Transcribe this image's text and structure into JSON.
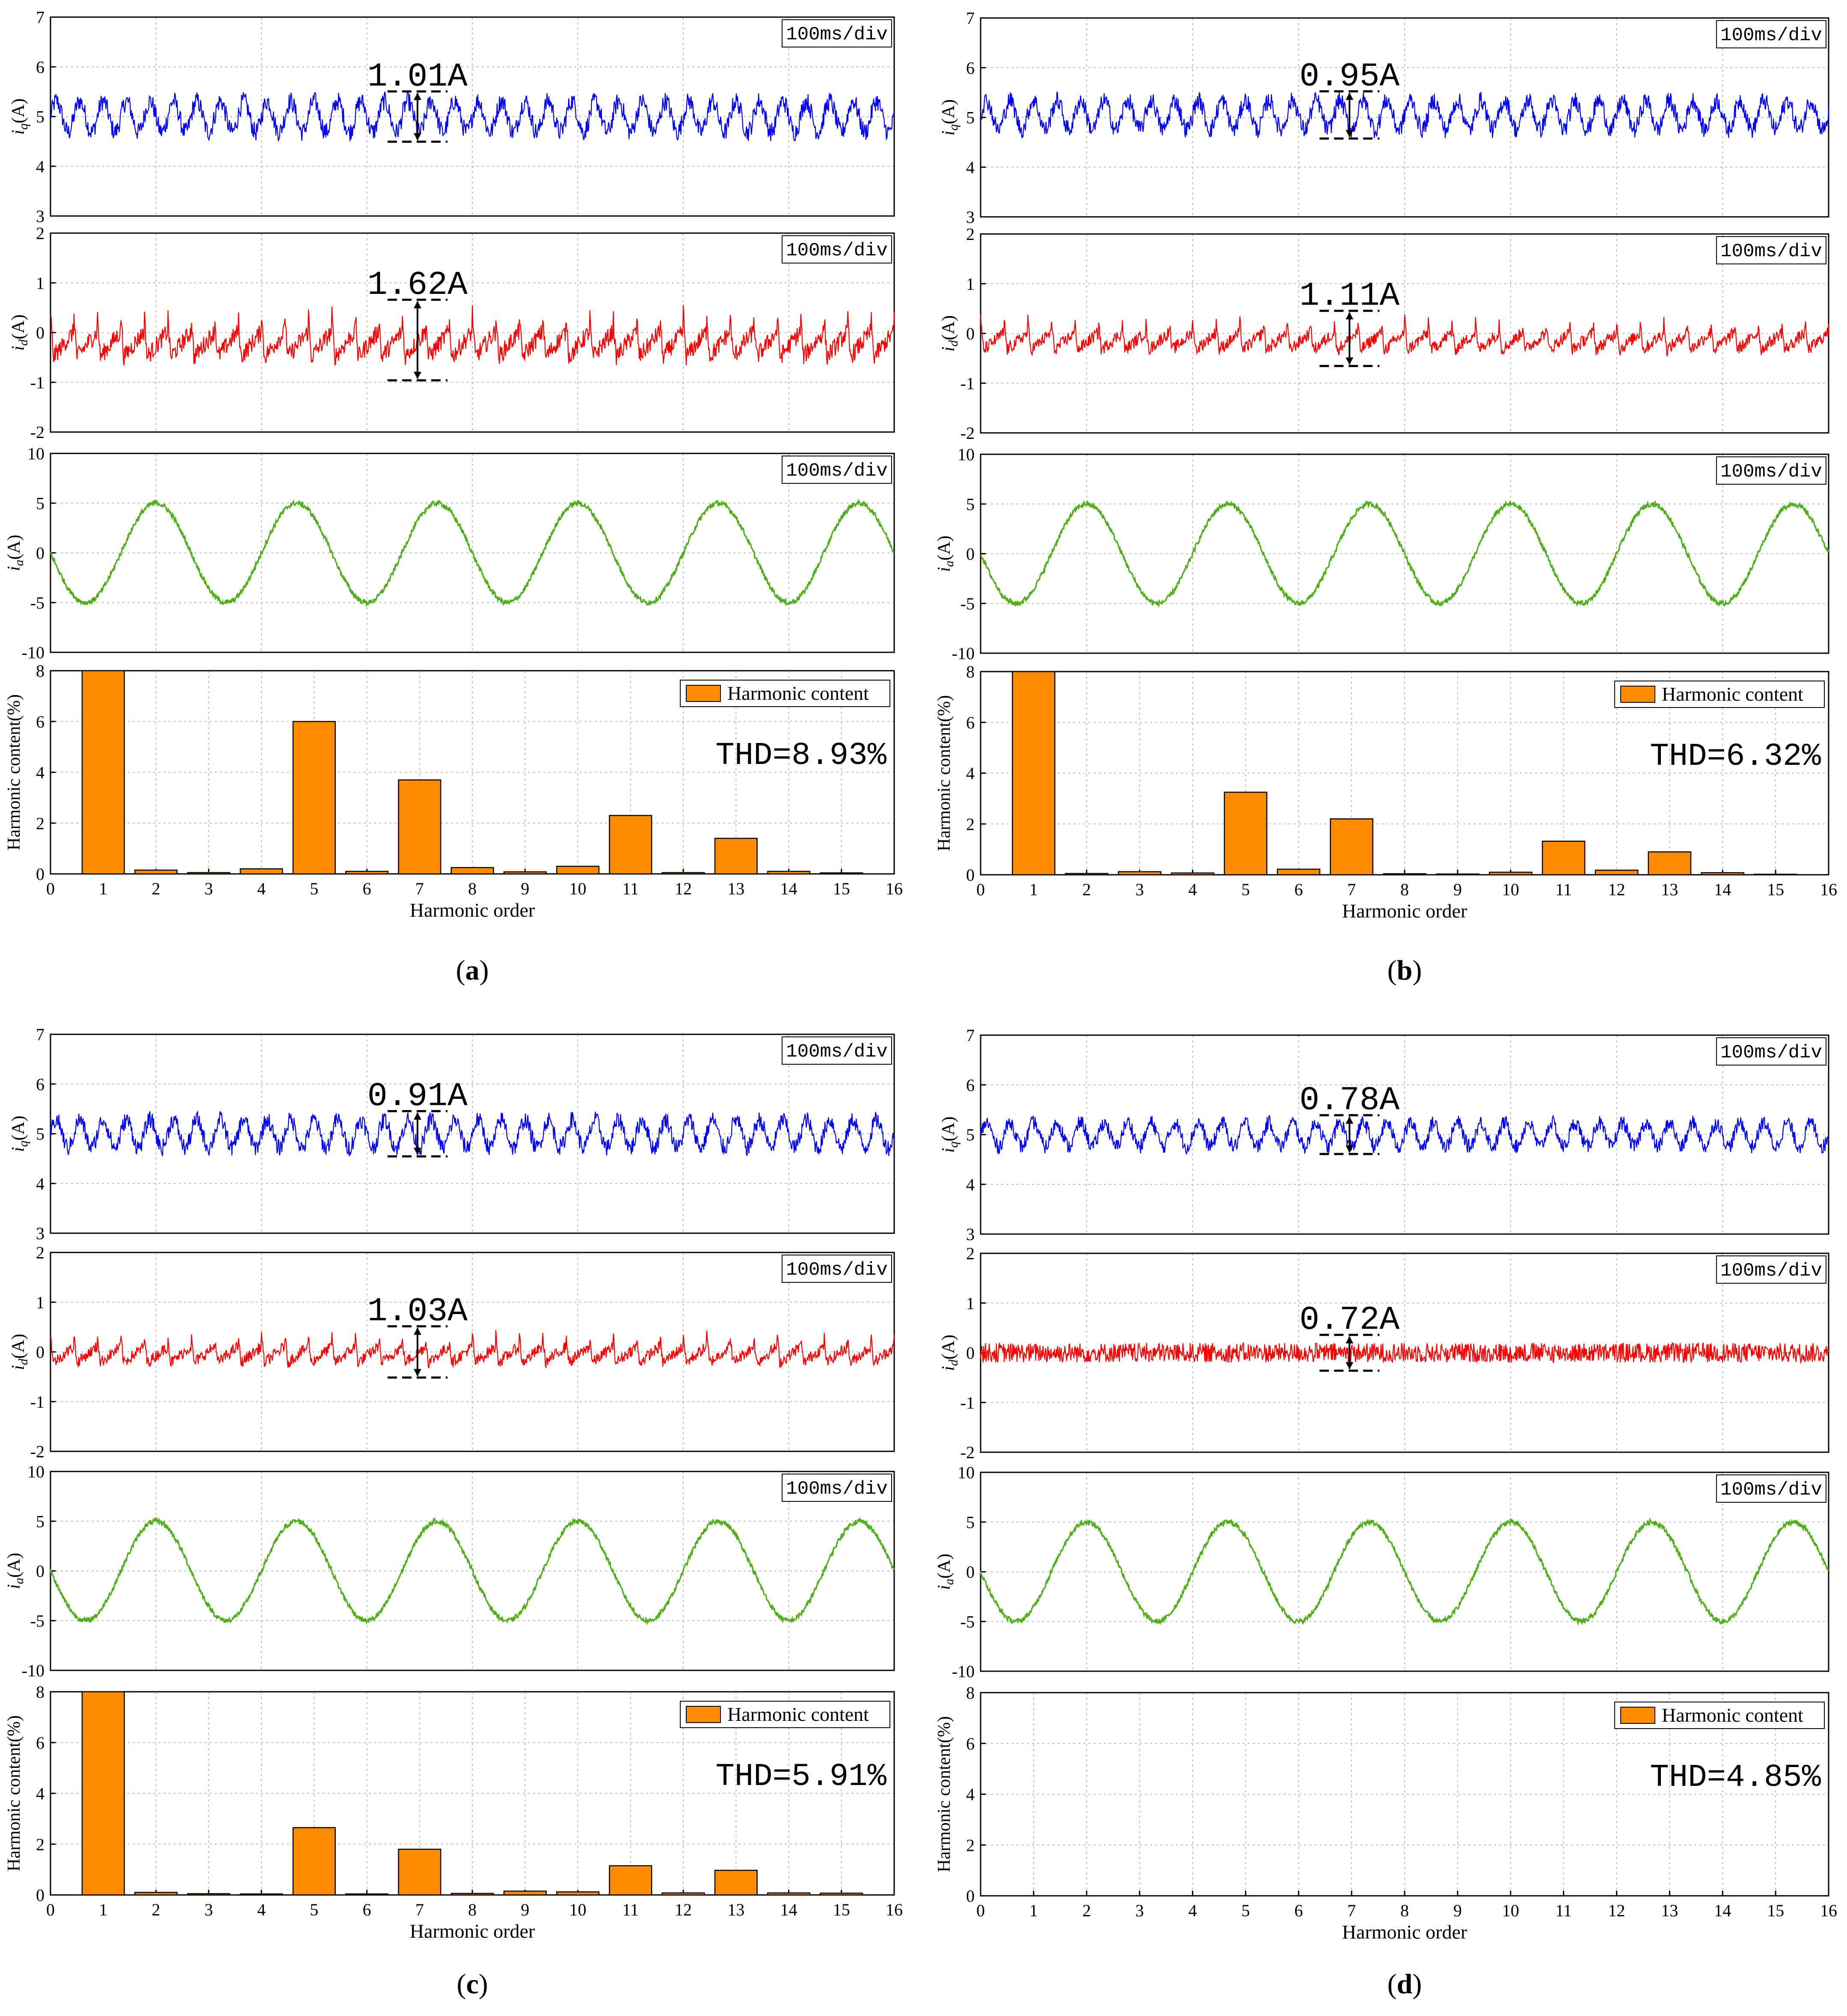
{
  "colors": {
    "iq": "#0000ff",
    "id": "#ff0000",
    "ia": "#4caf16",
    "bar": "#ff8c00",
    "bar_edge": "#000000"
  },
  "labels": {
    "iq_ylabel_main": "i",
    "iq_ylabel_sub": "q",
    "iq_ylabel_unit": "(A)",
    "id_ylabel_main": "i",
    "id_ylabel_sub": "d",
    "id_ylabel_unit": "(A)",
    "ia_ylabel_main": "i",
    "ia_ylabel_sub": "a",
    "ia_ylabel_unit": "(A)",
    "harm_ylabel": "Harmonic content(%)",
    "harm_xlabel": "Harmonic order",
    "legend": "Harmonic content",
    "time_div": "100ms/div"
  },
  "chart_data": [
    {
      "panel": "a",
      "caption_text": "a",
      "type": "figure-group",
      "iq": {
        "type": "line",
        "title": "",
        "ylabel": "iq(A)",
        "ylim": [
          3,
          7
        ],
        "yticks": [
          3,
          4,
          5,
          6,
          7
        ],
        "mean": 5.0,
        "ripple_pp": 1.01,
        "annotation": "1.01A",
        "timescale": "100ms/div"
      },
      "id": {
        "type": "line",
        "ylabel": "id(A)",
        "ylim": [
          -2,
          2
        ],
        "yticks": [
          -2,
          -1,
          0,
          1,
          2
        ],
        "mean": -0.15,
        "ripple_pp": 1.62,
        "annotation": "1.62A",
        "timescale": "100ms/div"
      },
      "ia": {
        "type": "line",
        "ylabel": "ia(A)",
        "ylim": [
          -10,
          10
        ],
        "yticks": [
          -10,
          -5,
          0,
          5,
          10
        ],
        "amplitude": 5,
        "cycles": 6,
        "timescale": "100ms/div"
      },
      "harmonic": {
        "type": "bar",
        "xlabel": "Harmonic order",
        "ylabel": "Harmonic content(%)",
        "xlim": [
          0,
          16
        ],
        "ylim": [
          0,
          8
        ],
        "xticks": [
          0,
          1,
          2,
          3,
          4,
          5,
          6,
          7,
          8,
          9,
          10,
          11,
          12,
          13,
          14,
          15,
          16
        ],
        "yticks": [
          0,
          2,
          4,
          6,
          8
        ],
        "categories": [
          1,
          2,
          3,
          4,
          5,
          6,
          7,
          8,
          9,
          10,
          11,
          12,
          13,
          14,
          15
        ],
        "values": [
          8,
          0.15,
          0.05,
          0.2,
          6.0,
          0.1,
          3.7,
          0.25,
          0.08,
          0.3,
          2.3,
          0.05,
          1.4,
          0.1,
          0.04
        ],
        "thd": "THD=8.93%",
        "legend": "Harmonic content"
      }
    },
    {
      "panel": "b",
      "caption_text": "b",
      "type": "figure-group",
      "iq": {
        "type": "line",
        "ylabel": "iq(A)",
        "ylim": [
          3,
          7
        ],
        "yticks": [
          3,
          4,
          5,
          6,
          7
        ],
        "mean": 5.05,
        "ripple_pp": 0.95,
        "annotation": "0.95A",
        "timescale": "100ms/div"
      },
      "id": {
        "type": "line",
        "ylabel": "id(A)",
        "ylim": [
          -2,
          2
        ],
        "yticks": [
          -2,
          -1,
          0,
          1,
          2
        ],
        "mean": -0.1,
        "ripple_pp": 1.11,
        "annotation": "1.11A",
        "timescale": "100ms/div"
      },
      "ia": {
        "type": "line",
        "ylabel": "ia(A)",
        "ylim": [
          -10,
          10
        ],
        "yticks": [
          -10,
          -5,
          0,
          5,
          10
        ],
        "amplitude": 5,
        "cycles": 6,
        "timescale": "100ms/div"
      },
      "harmonic": {
        "type": "bar",
        "xlabel": "Harmonic order",
        "ylabel": "Harmonic content(%)",
        "xlim": [
          0,
          16
        ],
        "ylim": [
          0,
          8
        ],
        "xticks": [
          0,
          1,
          2,
          3,
          4,
          5,
          6,
          7,
          8,
          9,
          10,
          11,
          12,
          13,
          14,
          15,
          16
        ],
        "yticks": [
          0,
          2,
          4,
          6,
          8
        ],
        "categories": [
          1,
          2,
          3,
          4,
          5,
          6,
          7,
          8,
          9,
          10,
          11,
          12,
          13,
          14,
          15
        ],
        "values": [
          8,
          0.05,
          0.12,
          0.07,
          3.25,
          0.22,
          2.2,
          0.04,
          0.03,
          0.1,
          1.32,
          0.18,
          0.9,
          0.08,
          0.02
        ],
        "thd": "THD=6.32%",
        "legend": "Harmonic content"
      }
    },
    {
      "panel": "c",
      "caption_text": "c",
      "type": "figure-group",
      "iq": {
        "type": "line",
        "ylabel": "iq(A)",
        "ylim": [
          3,
          7
        ],
        "yticks": [
          3,
          4,
          5,
          6,
          7
        ],
        "mean": 5.0,
        "ripple_pp": 0.91,
        "annotation": "0.91A",
        "timescale": "100ms/div"
      },
      "id": {
        "type": "line",
        "ylabel": "id(A)",
        "ylim": [
          -2,
          2
        ],
        "yticks": [
          -2,
          -1,
          0,
          1,
          2
        ],
        "mean": 0.0,
        "ripple_pp": 1.03,
        "annotation": "1.03A",
        "timescale": "100ms/div"
      },
      "ia": {
        "type": "line",
        "ylabel": "ia(A)",
        "ylim": [
          -10,
          10
        ],
        "yticks": [
          -10,
          -5,
          0,
          5,
          10
        ],
        "amplitude": 5,
        "cycles": 6,
        "timescale": "100ms/div"
      },
      "harmonic": {
        "type": "bar",
        "xlabel": "Harmonic order",
        "ylabel": "Harmonic content(%)",
        "xlim": [
          0,
          16
        ],
        "ylim": [
          0,
          8
        ],
        "xticks": [
          0,
          1,
          2,
          3,
          4,
          5,
          6,
          7,
          8,
          9,
          10,
          11,
          12,
          13,
          14,
          15,
          16
        ],
        "yticks": [
          0,
          2,
          4,
          6,
          8
        ],
        "categories": [
          1,
          2,
          3,
          4,
          5,
          6,
          7,
          8,
          9,
          10,
          11,
          12,
          13,
          14,
          15
        ],
        "values": [
          8,
          0.1,
          0.05,
          0.04,
          2.65,
          0.04,
          1.8,
          0.06,
          0.15,
          0.12,
          1.15,
          0.08,
          0.97,
          0.08,
          0.07
        ],
        "thd": "THD=5.91%",
        "legend": "Harmonic content"
      }
    },
    {
      "panel": "d",
      "caption_text": "d",
      "type": "figure-group",
      "iq": {
        "type": "line",
        "ylabel": "iq(A)",
        "ylim": [
          3,
          7
        ],
        "yticks": [
          3,
          4,
          5,
          6,
          7
        ],
        "mean": 5.0,
        "ripple_pp": 0.78,
        "annotation": "0.78A",
        "timescale": "100ms/div"
      },
      "id": {
        "type": "line",
        "ylabel": "id(A)",
        "ylim": [
          -2,
          2
        ],
        "yticks": [
          -2,
          -1,
          0,
          1,
          2
        ],
        "mean": 0.0,
        "ripple_pp": 0.72,
        "annotation": "0.72A",
        "timescale": "100ms/div"
      },
      "ia": {
        "type": "line",
        "ylabel": "ia(A)",
        "ylim": [
          -10,
          10
        ],
        "yticks": [
          -10,
          -5,
          0,
          5,
          10
        ],
        "amplitude": 5,
        "cycles": 6,
        "timescale": "100ms/div"
      },
      "harmonic": {
        "type": "bar",
        "xlabel": "Harmonic order",
        "ylabel": "Harmonic content(%)",
        "xlim": [
          0,
          16
        ],
        "ylim": [
          0,
          8
        ],
        "xticks": [
          0,
          1,
          2,
          3,
          4,
          5,
          6,
          7,
          8,
          9,
          10,
          11,
          12,
          13,
          14,
          15,
          16
        ],
        "yticks": [
          0,
          2,
          4,
          6,
          8
        ],
        "categories": [],
        "values": [],
        "thd": "THD=4.85%",
        "legend": "Harmonic content"
      }
    }
  ]
}
